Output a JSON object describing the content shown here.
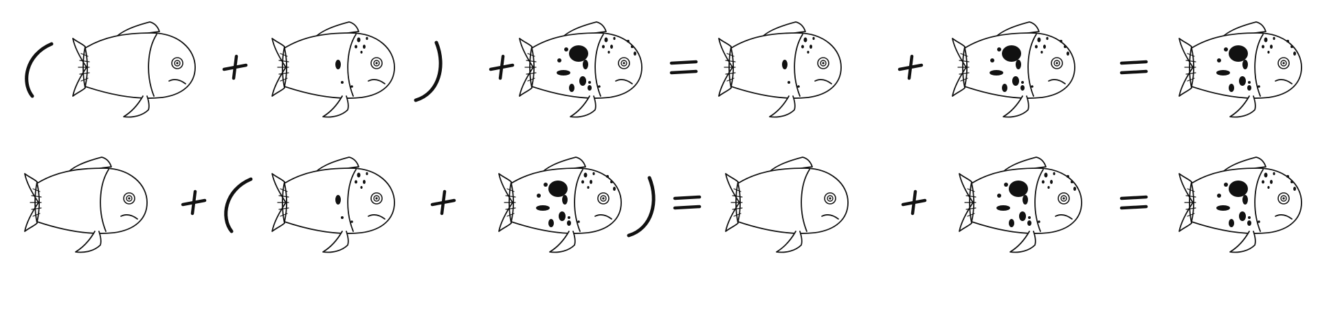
{
  "equations": [
    {
      "tokens": [
        {
          "kind": "paren",
          "value": "("
        },
        {
          "kind": "fish",
          "spots": 0
        },
        {
          "kind": "op",
          "value": "+"
        },
        {
          "kind": "fish",
          "spots": 1
        },
        {
          "kind": "paren",
          "value": ")"
        },
        {
          "kind": "op",
          "value": "+"
        },
        {
          "kind": "fish",
          "spots": 2
        },
        {
          "kind": "op",
          "value": "="
        },
        {
          "kind": "fish",
          "spots": 1
        },
        {
          "kind": "op",
          "value": "+"
        },
        {
          "kind": "fish",
          "spots": 2
        },
        {
          "kind": "op",
          "value": "="
        },
        {
          "kind": "fish",
          "spots": 2
        }
      ]
    },
    {
      "tokens": [
        {
          "kind": "fish",
          "spots": 0
        },
        {
          "kind": "op",
          "value": "+"
        },
        {
          "kind": "paren",
          "value": "("
        },
        {
          "kind": "fish",
          "spots": 1
        },
        {
          "kind": "op",
          "value": "+"
        },
        {
          "kind": "fish",
          "spots": 2
        },
        {
          "kind": "paren",
          "value": ")"
        },
        {
          "kind": "op",
          "value": "="
        },
        {
          "kind": "fish",
          "spots": 0
        },
        {
          "kind": "op",
          "value": "+"
        },
        {
          "kind": "fish",
          "spots": 2
        },
        {
          "kind": "op",
          "value": "="
        },
        {
          "kind": "fish",
          "spots": 2
        }
      ]
    }
  ],
  "colors": {
    "ink": "#111111",
    "background": "#ffffff",
    "fish_fill": "#ffffff"
  }
}
